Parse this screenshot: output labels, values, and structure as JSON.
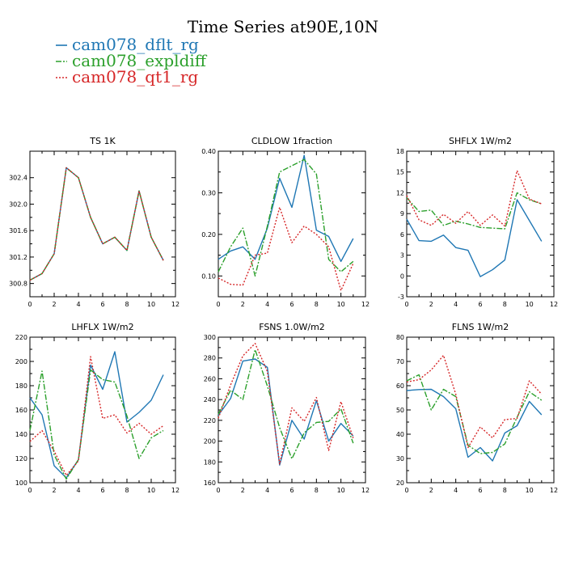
{
  "figure": {
    "title": "Time Series at90E,10N",
    "legend": [
      {
        "name": "cam078_dflt_rg",
        "color": "#1f77b4"
      },
      {
        "name": "cam078_expldiff",
        "color": "#2ca02c"
      },
      {
        "name": "cam078_qt1_rg",
        "color": "#d62728"
      }
    ]
  },
  "chart_data": [
    {
      "type": "line",
      "title": "TS   1K",
      "x": [
        0,
        1,
        2,
        3,
        4,
        5,
        6,
        7,
        8,
        9,
        10,
        11
      ],
      "xlim": [
        0,
        12
      ],
      "xticks": [
        0,
        2,
        4,
        6,
        8,
        10,
        12
      ],
      "ylim": [
        300.6,
        302.8
      ],
      "yticks": [
        300.8,
        301.2,
        301.6,
        302.0,
        302.4
      ],
      "ytick_labels": [
        "300.8",
        "301.2",
        "301.6",
        "302.0",
        "302.4"
      ],
      "series": [
        {
          "name": "cam078_dflt_rg",
          "values": [
            300.85,
            300.95,
            301.25,
            302.55,
            302.4,
            301.8,
            301.4,
            301.5,
            301.3,
            302.2,
            301.5,
            301.15
          ]
        },
        {
          "name": "cam078_expldiff",
          "values": [
            300.85,
            300.95,
            301.25,
            302.55,
            302.4,
            301.8,
            301.4,
            301.5,
            301.3,
            302.2,
            301.5,
            301.15
          ]
        },
        {
          "name": "cam078_qt1_rg",
          "values": [
            300.85,
            300.95,
            301.25,
            302.55,
            302.4,
            301.8,
            301.4,
            301.5,
            301.3,
            302.2,
            301.5,
            301.15
          ]
        }
      ]
    },
    {
      "type": "line",
      "title": "CLDLOW    1fraction",
      "x": [
        0,
        1,
        2,
        3,
        4,
        5,
        6,
        7,
        8,
        9,
        10,
        11
      ],
      "xlim": [
        0,
        12
      ],
      "xticks": [
        0,
        2,
        4,
        6,
        8,
        10,
        12
      ],
      "ylim": [
        0.05,
        0.4
      ],
      "yticks": [
        0.1,
        0.2,
        0.3,
        0.4
      ],
      "ytick_labels": [
        "0.10",
        "0.20",
        "0.30",
        "0.40"
      ],
      "series": [
        {
          "name": "cam078_dflt_rg",
          "values": [
            0.14,
            0.16,
            0.17,
            0.14,
            0.215,
            0.335,
            0.265,
            0.39,
            0.21,
            0.195,
            0.135,
            0.19
          ]
        },
        {
          "name": "cam078_expldiff",
          "values": [
            0.11,
            0.17,
            0.215,
            0.1,
            0.22,
            0.35,
            0.365,
            0.38,
            0.345,
            0.14,
            0.11,
            0.135
          ]
        },
        {
          "name": "cam078_qt1_rg",
          "values": [
            0.095,
            0.08,
            0.078,
            0.15,
            0.155,
            0.265,
            0.18,
            0.22,
            0.2,
            0.17,
            0.065,
            0.13
          ]
        }
      ]
    },
    {
      "type": "line",
      "title": "SHFLX    1W/m2",
      "x": [
        0,
        1,
        2,
        3,
        4,
        5,
        6,
        7,
        8,
        9,
        10,
        11
      ],
      "xlim": [
        0,
        12
      ],
      "xticks": [
        0,
        2,
        4,
        6,
        8,
        10,
        12
      ],
      "ylim": [
        -3,
        18
      ],
      "yticks": [
        -3,
        0,
        3,
        6,
        9,
        12,
        15,
        18
      ],
      "ytick_labels": [
        "-3",
        "0",
        "3",
        "6",
        "9",
        "12",
        "15",
        "18"
      ],
      "series": [
        {
          "name": "cam078_dflt_rg",
          "values": [
            8.2,
            5.1,
            5.0,
            5.9,
            4.1,
            3.7,
            -0.1,
            0.9,
            2.3,
            11.0,
            8.0,
            5.0
          ]
        },
        {
          "name": "cam078_expldiff",
          "values": [
            11.3,
            9.3,
            9.5,
            7.3,
            7.9,
            7.5,
            7.0,
            6.9,
            6.8,
            12.0,
            11.0,
            10.4
          ]
        },
        {
          "name": "cam078_qt1_rg",
          "values": [
            11.6,
            8.1,
            7.3,
            8.9,
            7.6,
            9.3,
            7.3,
            8.8,
            7.2,
            15.2,
            11.1,
            10.4
          ]
        }
      ]
    },
    {
      "type": "line",
      "title": "LHFLX    1W/m2",
      "x": [
        0,
        1,
        2,
        3,
        4,
        5,
        6,
        7,
        8,
        9,
        10,
        11
      ],
      "xlim": [
        0,
        12
      ],
      "xticks": [
        0,
        2,
        4,
        6,
        8,
        10,
        12
      ],
      "ylim": [
        100,
        220
      ],
      "yticks": [
        100,
        120,
        140,
        160,
        180,
        200,
        220
      ],
      "ytick_labels": [
        "100",
        "120",
        "140",
        "160",
        "180",
        "200",
        "220"
      ],
      "series": [
        {
          "name": "cam078_dflt_rg",
          "values": [
            170,
            156,
            114,
            104,
            119,
            197,
            177,
            208,
            150,
            158,
            168,
            189
          ]
        },
        {
          "name": "cam078_expldiff",
          "values": [
            143,
            192,
            123,
            103,
            119,
            193,
            185,
            183,
            155,
            120,
            137,
            143
          ]
        },
        {
          "name": "cam078_qt1_rg",
          "values": [
            134,
            143,
            126,
            106,
            118,
            204,
            153,
            156,
            141,
            149,
            140,
            147
          ]
        }
      ]
    },
    {
      "type": "line",
      "title": "FSNS    1.0W/m2",
      "x": [
        0,
        1,
        2,
        3,
        4,
        5,
        6,
        7,
        8,
        9,
        10,
        11
      ],
      "xlim": [
        0,
        12
      ],
      "xticks": [
        0,
        2,
        4,
        6,
        8,
        10,
        12
      ],
      "ylim": [
        160,
        300
      ],
      "yticks": [
        160,
        180,
        200,
        220,
        240,
        260,
        280,
        300
      ],
      "ytick_labels": [
        "160",
        "180",
        "200",
        "220",
        "240",
        "260",
        "280",
        "300"
      ],
      "series": [
        {
          "name": "cam078_dflt_rg",
          "values": [
            225,
            241,
            277,
            279,
            271,
            177,
            220,
            202,
            239,
            200,
            217,
            205
          ]
        },
        {
          "name": "cam078_expldiff",
          "values": [
            226,
            249,
            240,
            288,
            253,
            213,
            183,
            208,
            218,
            219,
            231,
            198
          ]
        },
        {
          "name": "cam078_qt1_rg",
          "values": [
            222,
            254,
            282,
            294,
            267,
            178,
            232,
            219,
            242,
            191,
            238,
            203
          ]
        }
      ]
    },
    {
      "type": "line",
      "title": "FLNS    1W/m2",
      "x": [
        0,
        1,
        2,
        3,
        4,
        5,
        6,
        7,
        8,
        9,
        10,
        11
      ],
      "xlim": [
        0,
        12
      ],
      "xticks": [
        0,
        2,
        4,
        6,
        8,
        10,
        12
      ],
      "ylim": [
        20,
        80
      ],
      "yticks": [
        20,
        30,
        40,
        50,
        60,
        70,
        80
      ],
      "ytick_labels": [
        "20",
        "30",
        "40",
        "50",
        "60",
        "70",
        "80"
      ],
      "series": [
        {
          "name": "cam078_dflt_rg",
          "values": [
            58,
            58.4,
            58.5,
            55.5,
            50.5,
            30.5,
            34.5,
            29.0,
            40.5,
            43.5,
            53.5,
            48.0
          ]
        },
        {
          "name": "cam078_expldiff",
          "values": [
            62,
            64.5,
            50.0,
            58.5,
            55.5,
            35.5,
            32.0,
            32.5,
            36.0,
            47.0,
            57.5,
            54.0
          ]
        },
        {
          "name": "cam078_qt1_rg",
          "values": [
            61.5,
            62.5,
            66.5,
            72.5,
            56.5,
            34.5,
            43.0,
            38.5,
            46.0,
            46.5,
            62.0,
            56.5
          ]
        }
      ]
    }
  ]
}
